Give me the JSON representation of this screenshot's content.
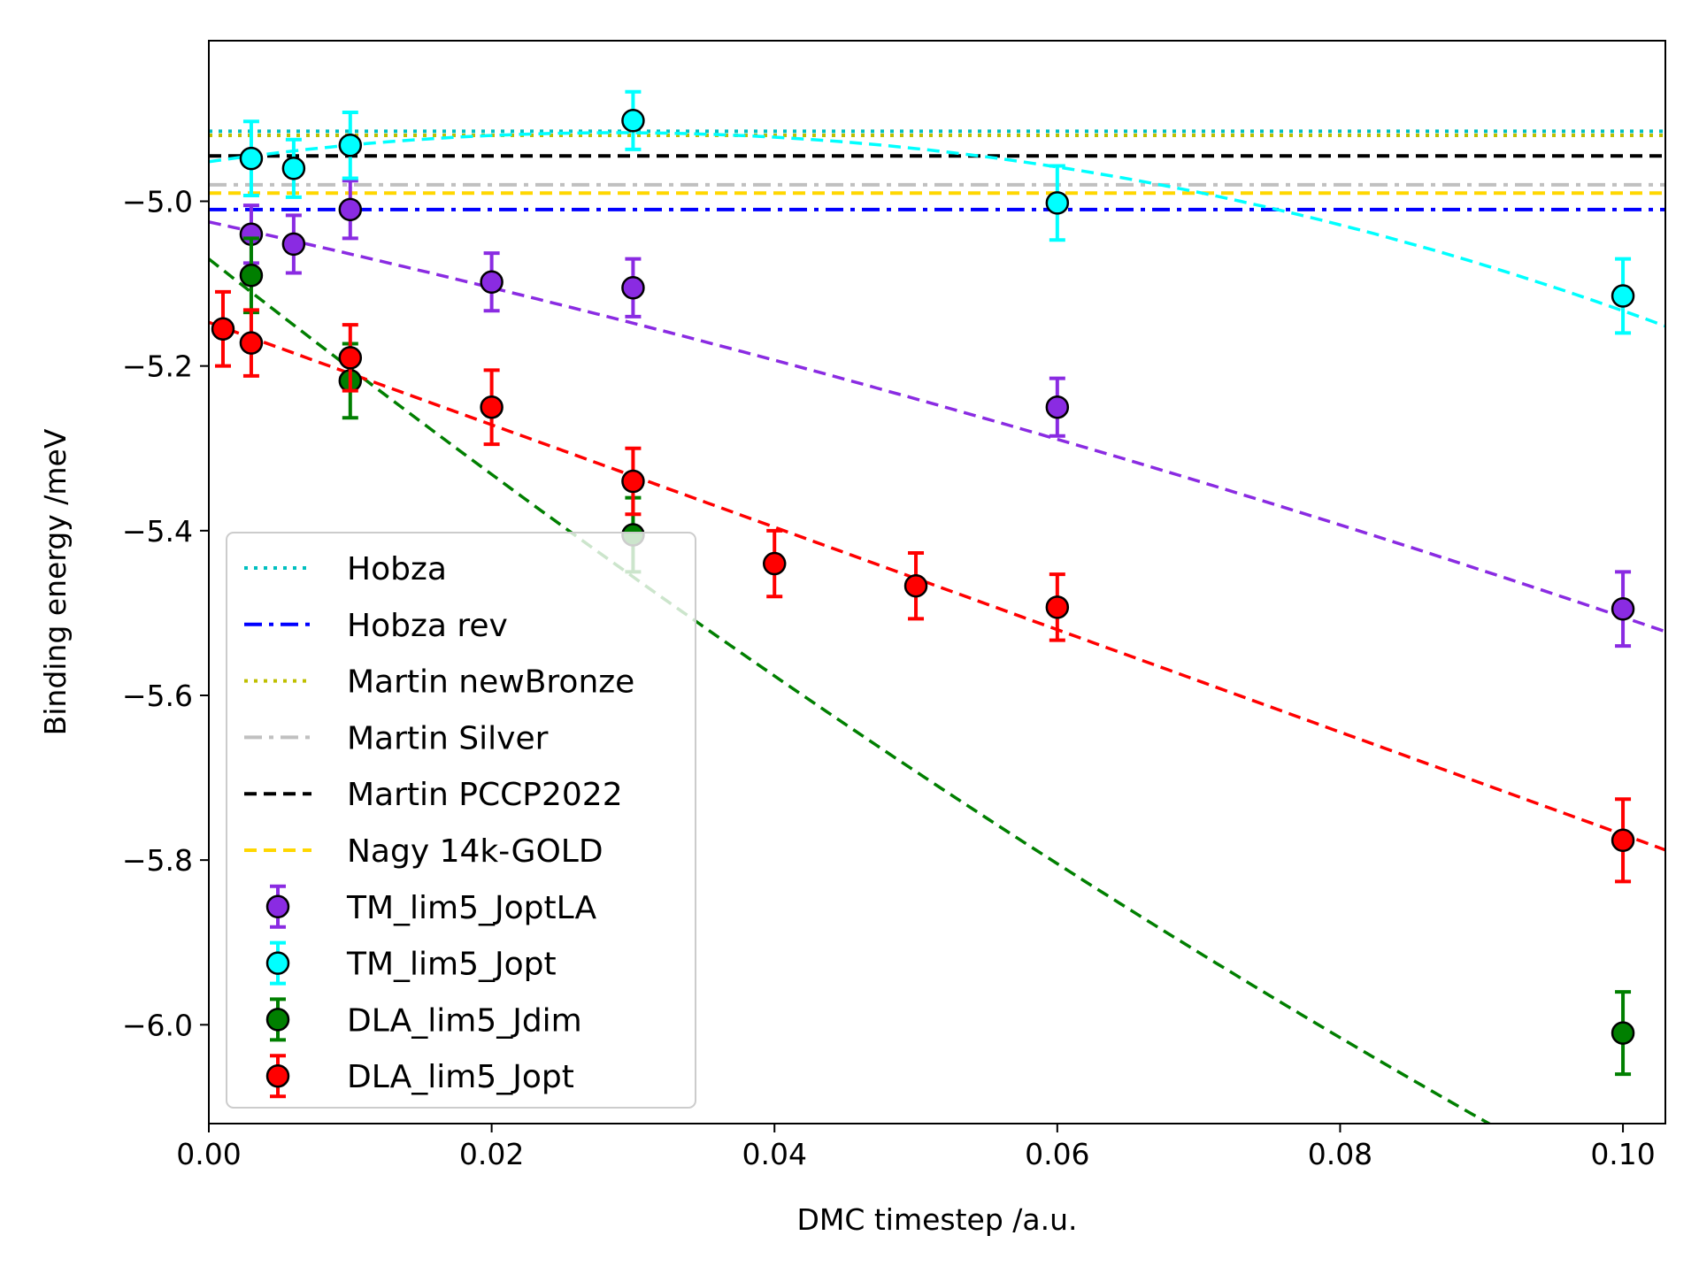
{
  "chart_data": {
    "type": "scatter",
    "title": "",
    "xlabel": "DMC timestep /a.u.",
    "ylabel": "Binding energy /meV",
    "xlim": [
      0.0,
      0.103
    ],
    "ylim": [
      -6.12,
      -4.805
    ],
    "xticks": [
      0.0,
      0.02,
      0.04,
      0.06,
      0.08,
      0.1
    ],
    "xtick_labels": [
      "0.00",
      "0.02",
      "0.04",
      "0.06",
      "0.08",
      "0.10"
    ],
    "yticks": [
      -5.0,
      -5.2,
      -5.4,
      -5.6,
      -5.8,
      -6.0
    ],
    "ytick_labels": [
      "−5.0",
      "−5.2",
      "−5.4",
      "−5.6",
      "−5.8",
      "−6.0"
    ],
    "grid": false,
    "legend_position": "lower-left",
    "reference_lines": [
      {
        "name": "Hobza",
        "y": -4.915,
        "color": "#00bfbf",
        "style": "dotted"
      },
      {
        "name": "Hobza rev",
        "y": -5.01,
        "color": "#0000ff",
        "style": "dashdot"
      },
      {
        "name": "Martin newBronze",
        "y": -4.92,
        "color": "#bfbf00",
        "style": "dotted"
      },
      {
        "name": "Martin Silver",
        "y": -4.98,
        "color": "#c0c0c0",
        "style": "dashdot"
      },
      {
        "name": "Martin PCCP2022",
        "y": -4.945,
        "color": "#000000",
        "style": "dashed"
      },
      {
        "name": "Nagy 14k-GOLD",
        "y": -4.99,
        "color": "#ffd700",
        "style": "dashed"
      }
    ],
    "series": [
      {
        "name": "TM_lim5_JoptLA",
        "color": "#8a2be2",
        "x": [
          0.003,
          0.006,
          0.01,
          0.02,
          0.03,
          0.06,
          0.1
        ],
        "y": [
          -5.04,
          -5.052,
          -5.01,
          -5.098,
          -5.105,
          -5.25,
          -5.495
        ],
        "err": [
          0.035,
          0.035,
          0.035,
          0.035,
          0.035,
          0.035,
          0.045
        ],
        "fit": {
          "intercept": -5.025,
          "slope": -3.8,
          "quad": -10.0
        }
      },
      {
        "name": "TM_lim5_Jopt",
        "color": "#00ffff",
        "x": [
          0.003,
          0.006,
          0.01,
          0.03,
          0.06,
          0.1
        ],
        "y": [
          -4.948,
          -4.96,
          -4.932,
          -4.902,
          -5.002,
          -5.115
        ],
        "err": [
          0.045,
          0.035,
          0.04,
          0.035,
          0.045,
          0.045
        ],
        "fit": {
          "intercept": -4.952,
          "slope": 2.45,
          "quad": -42.6
        }
      },
      {
        "name": "DLA_lim5_Jdim",
        "color": "#007f00",
        "x": [
          0.003,
          0.01,
          0.03,
          0.1
        ],
        "y": [
          -5.09,
          -5.218,
          -5.405,
          -6.01
        ],
        "err": [
          0.045,
          0.045,
          0.045,
          0.05
        ],
        "fit": {
          "intercept": -5.07,
          "slope": -13.5,
          "quad": 21.0
        }
      },
      {
        "name": "DLA_lim5_Jopt",
        "color": "#ff0000",
        "x": [
          0.001,
          0.003,
          0.01,
          0.02,
          0.03,
          0.04,
          0.05,
          0.06,
          0.1
        ],
        "y": [
          -5.155,
          -5.172,
          -5.19,
          -5.25,
          -5.34,
          -5.44,
          -5.467,
          -5.493,
          -5.776
        ],
        "err": [
          0.045,
          0.04,
          0.04,
          0.045,
          0.04,
          0.04,
          0.04,
          0.04,
          0.05
        ],
        "fit": {
          "intercept": -5.147,
          "slope": -6.22,
          "quad": 0.0
        }
      }
    ],
    "legend": [
      {
        "label": "Hobza",
        "kind": "line",
        "ref": 0
      },
      {
        "label": "Hobza rev",
        "kind": "line",
        "ref": 1
      },
      {
        "label": "Martin newBronze",
        "kind": "line",
        "ref": 2
      },
      {
        "label": "Martin Silver",
        "kind": "line",
        "ref": 3
      },
      {
        "label": "Martin PCCP2022",
        "kind": "line",
        "ref": 4
      },
      {
        "label": "Nagy 14k-GOLD",
        "kind": "line",
        "ref": 5
      },
      {
        "label": "TM_lim5_JoptLA",
        "kind": "marker",
        "ref": 0
      },
      {
        "label": "TM_lim5_Jopt",
        "kind": "marker",
        "ref": 1
      },
      {
        "label": "DLA_lim5_Jdim",
        "kind": "marker",
        "ref": 2
      },
      {
        "label": "DLA_lim5_Jopt",
        "kind": "marker",
        "ref": 3
      }
    ]
  }
}
